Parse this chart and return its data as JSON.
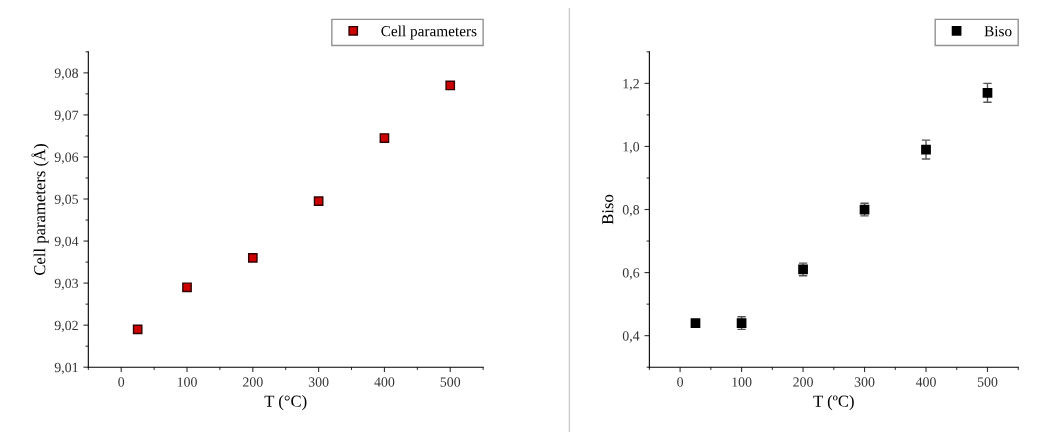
{
  "chart_data": [
    {
      "type": "scatter",
      "xlabel": "T (°C)",
      "ylabel": "Cell parameters (Å)",
      "x": [
        25,
        100,
        200,
        300,
        400,
        500
      ],
      "series": [
        {
          "name": "Cell parameters",
          "color": "#cc0000",
          "values": [
            9.019,
            9.029,
            9.036,
            9.0495,
            9.0645,
            9.077
          ]
        }
      ],
      "xlim": [
        -50,
        550
      ],
      "xticks": [
        0,
        100,
        200,
        300,
        400,
        500
      ],
      "ylim": [
        9.01,
        9.085
      ],
      "yticks": [
        {
          "value": 9.01,
          "label": "9,01"
        },
        {
          "value": 9.02,
          "label": "9,02"
        },
        {
          "value": 9.03,
          "label": "9,03"
        },
        {
          "value": 9.04,
          "label": "9,04"
        },
        {
          "value": 9.05,
          "label": "9,05"
        },
        {
          "value": 9.06,
          "label": "9,06"
        },
        {
          "value": 9.07,
          "label": "9,07"
        },
        {
          "value": 9.08,
          "label": "9,08"
        }
      ],
      "marker": "square",
      "legend": "top right",
      "grid": false
    },
    {
      "type": "scatter",
      "xlabel": "T (ºC)",
      "ylabel": "Biso",
      "x": [
        25,
        100,
        200,
        300,
        400,
        500
      ],
      "series": [
        {
          "name": "Biso",
          "color": "#000000",
          "values": [
            0.44,
            0.44,
            0.61,
            0.8,
            0.99,
            1.17
          ],
          "errors": [
            null,
            0.02,
            0.02,
            0.02,
            0.03,
            0.03
          ]
        }
      ],
      "xlim": [
        -50,
        550
      ],
      "xticks": [
        0,
        100,
        200,
        300,
        400,
        500
      ],
      "ylim": [
        0.3,
        1.3
      ],
      "yticks": [
        {
          "value": 0.4,
          "label": "0,4"
        },
        {
          "value": 0.6,
          "label": "0,6"
        },
        {
          "value": 0.8,
          "label": "0,8"
        },
        {
          "value": 1.0,
          "label": "1,0"
        },
        {
          "value": 1.2,
          "label": "1,2"
        }
      ],
      "marker": "square",
      "legend": "top right",
      "grid": false
    }
  ]
}
